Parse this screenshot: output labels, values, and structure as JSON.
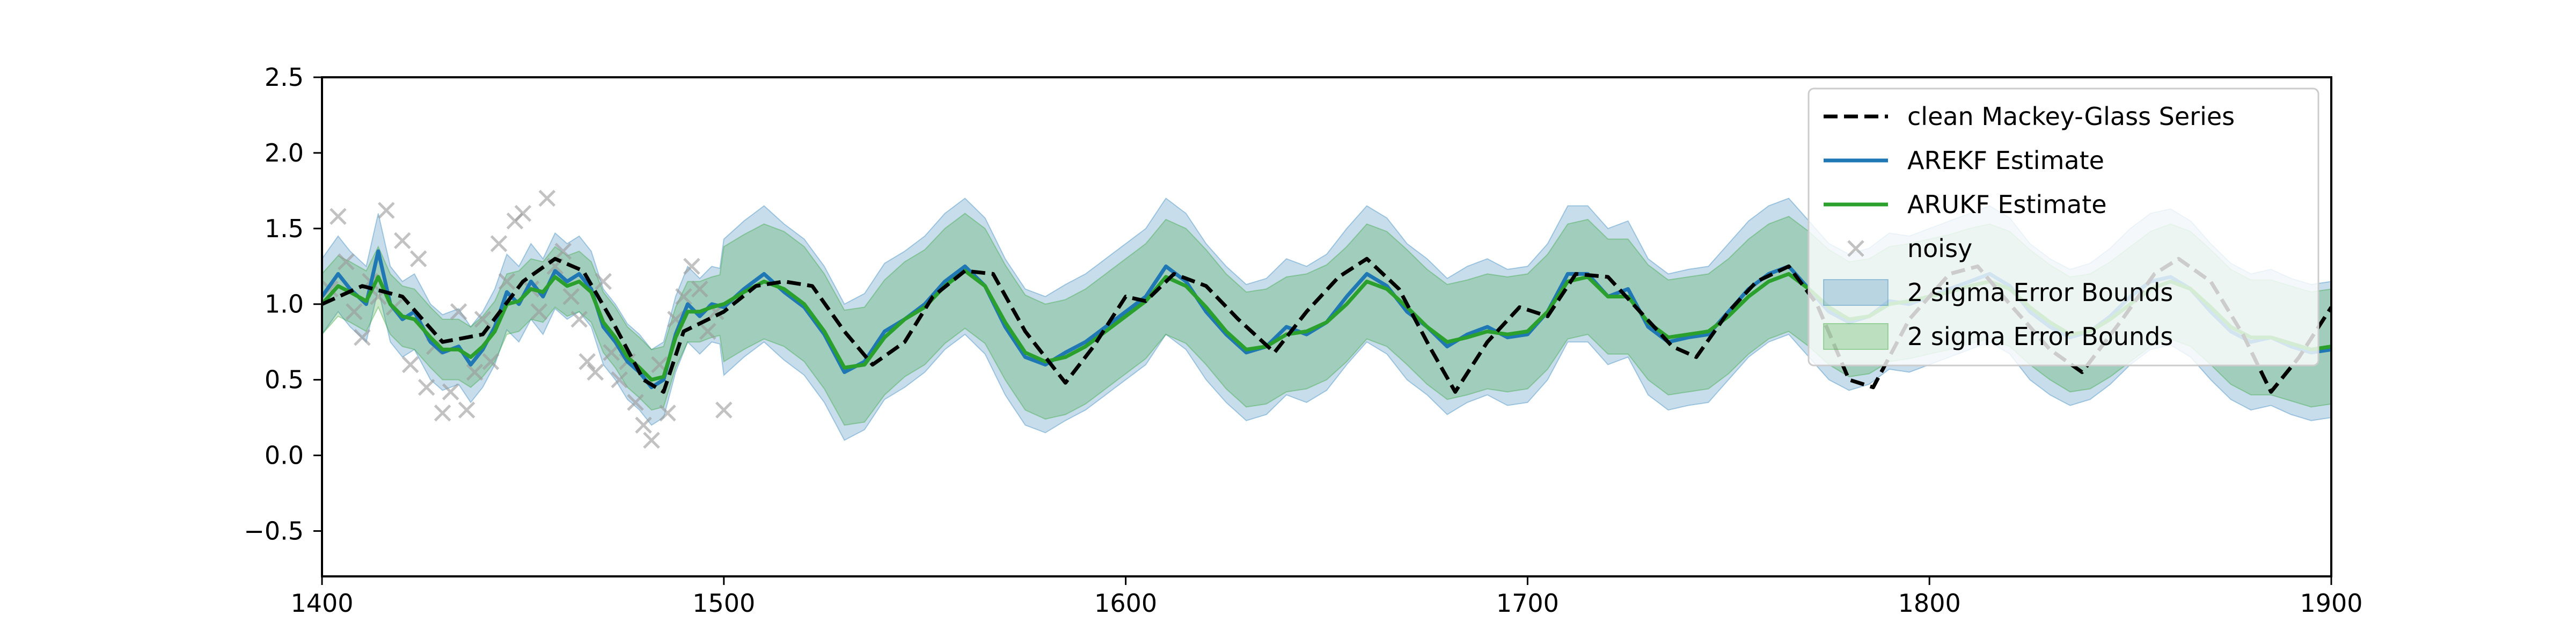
{
  "chart_data": {
    "type": "line",
    "title": "",
    "xlabel": "",
    "ylabel": "",
    "xlim": [
      1400,
      1900
    ],
    "ylim": [
      -0.8,
      2.5
    ],
    "xticks": [
      "1400",
      "1500",
      "1600",
      "1700",
      "1800",
      "1900"
    ],
    "yticks": [
      "−0.5",
      "0.0",
      "0.5",
      "1.0",
      "1.5",
      "2.0",
      "2.5"
    ],
    "ytick_values": [
      -0.5,
      0.0,
      0.5,
      1.0,
      1.5,
      2.0,
      2.5
    ],
    "xtick_values": [
      1400,
      1500,
      1600,
      1700,
      1800,
      1900
    ],
    "grid": false,
    "legend_position": "top-right",
    "legend": [
      "clean Mackey-Glass Series",
      "AREKF Estimate",
      "ARUKF Estimate",
      "noisy",
      "2 sigma Error Bounds",
      "2 sigma Error Bounds"
    ],
    "colors": {
      "clean": "#000000",
      "arekf": "#1f77b4",
      "arukf": "#2ca02c",
      "noisy": "#999999",
      "arekf_band": "#1f77b4",
      "arukf_band": "#2ca02c"
    },
    "series": [
      {
        "name": "clean Mackey-Glass Series",
        "x": [
          1400,
          1410,
          1420,
          1430,
          1440,
          1450,
          1458,
          1465,
          1472,
          1480,
          1485,
          1490,
          1500,
          1508,
          1515,
          1522,
          1530,
          1537,
          1545,
          1552,
          1560,
          1567,
          1575,
          1585,
          1592,
          1600,
          1605,
          1612,
          1620,
          1628,
          1637,
          1645,
          1653,
          1660,
          1668,
          1676,
          1682,
          1690,
          1698,
          1705,
          1712,
          1720,
          1728,
          1736,
          1742,
          1750,
          1757,
          1765,
          1772,
          1780,
          1786,
          1795,
          1805,
          1812,
          1820,
          1830,
          1838,
          1848,
          1856,
          1862,
          1870,
          1878,
          1885,
          1892,
          1900
        ],
        "y": [
          1.0,
          1.12,
          1.05,
          0.75,
          0.8,
          1.15,
          1.3,
          1.22,
          0.9,
          0.5,
          0.42,
          0.82,
          0.95,
          1.12,
          1.15,
          1.12,
          0.82,
          0.6,
          0.75,
          1.05,
          1.22,
          1.2,
          0.82,
          0.48,
          0.72,
          1.05,
          1.02,
          1.2,
          1.12,
          0.9,
          0.68,
          0.95,
          1.18,
          1.3,
          1.1,
          0.7,
          0.42,
          0.75,
          0.98,
          0.92,
          1.2,
          1.18,
          0.95,
          0.72,
          0.65,
          0.95,
          1.15,
          1.25,
          1.0,
          0.5,
          0.45,
          0.9,
          1.2,
          1.25,
          1.0,
          0.7,
          0.55,
          0.9,
          1.2,
          1.3,
          1.15,
          0.8,
          0.42,
          0.65,
          0.98
        ]
      },
      {
        "name": "AREKF Estimate",
        "x": [
          1400,
          1404,
          1407,
          1411,
          1414,
          1417,
          1420,
          1423,
          1427,
          1430,
          1434,
          1437,
          1440,
          1443,
          1446,
          1449,
          1452,
          1455,
          1458,
          1461,
          1464,
          1467,
          1470,
          1473,
          1476,
          1479,
          1482,
          1485,
          1488,
          1491,
          1494,
          1497,
          1500,
          1505,
          1510,
          1515,
          1520,
          1525,
          1530,
          1535,
          1540,
          1545,
          1550,
          1555,
          1560,
          1565,
          1570,
          1575,
          1580,
          1585,
          1590,
          1595,
          1600,
          1605,
          1610,
          1615,
          1620,
          1625,
          1630,
          1635,
          1640,
          1645,
          1650,
          1655,
          1660,
          1665,
          1670,
          1675,
          1680,
          1685,
          1690,
          1695,
          1700,
          1705,
          1710,
          1715,
          1720,
          1725,
          1730,
          1735,
          1740,
          1745,
          1750,
          1755,
          1760,
          1765,
          1770,
          1775,
          1780,
          1785,
          1790,
          1795,
          1800,
          1805,
          1810,
          1815,
          1820,
          1825,
          1830,
          1835,
          1840,
          1845,
          1850,
          1855,
          1860,
          1865,
          1870,
          1875,
          1880,
          1885,
          1890,
          1895,
          1900
        ],
        "y": [
          1.05,
          1.2,
          1.1,
          1.0,
          1.35,
          1.0,
          0.9,
          0.95,
          0.75,
          0.68,
          0.72,
          0.6,
          0.7,
          0.85,
          1.08,
          1.0,
          1.15,
          1.05,
          1.22,
          1.15,
          1.2,
          1.1,
          0.85,
          0.75,
          0.62,
          0.55,
          0.45,
          0.5,
          0.8,
          1.0,
          0.92,
          1.0,
          0.98,
          1.1,
          1.2,
          1.08,
          0.98,
          0.8,
          0.55,
          0.62,
          0.82,
          0.9,
          1.0,
          1.15,
          1.25,
          1.12,
          0.85,
          0.65,
          0.6,
          0.68,
          0.75,
          0.85,
          0.95,
          1.05,
          1.25,
          1.15,
          0.95,
          0.8,
          0.68,
          0.72,
          0.85,
          0.8,
          0.88,
          1.05,
          1.2,
          1.12,
          0.95,
          0.85,
          0.72,
          0.8,
          0.85,
          0.78,
          0.8,
          0.95,
          1.2,
          1.2,
          1.05,
          1.1,
          0.85,
          0.75,
          0.78,
          0.8,
          0.95,
          1.1,
          1.2,
          1.25,
          1.1,
          0.95,
          0.88,
          0.92,
          1.02,
          1.0,
          1.05,
          1.1,
          1.15,
          1.2,
          1.12,
          0.95,
          0.85,
          0.78,
          0.82,
          0.92,
          1.05,
          1.15,
          1.18,
          1.1,
          0.95,
          0.82,
          0.75,
          0.78,
          0.72,
          0.68,
          0.7
        ]
      },
      {
        "name": "ARUKF Estimate",
        "x": [
          1400,
          1404,
          1407,
          1411,
          1414,
          1417,
          1420,
          1423,
          1427,
          1430,
          1434,
          1437,
          1440,
          1443,
          1446,
          1449,
          1452,
          1455,
          1458,
          1461,
          1464,
          1467,
          1470,
          1473,
          1476,
          1479,
          1482,
          1485,
          1488,
          1491,
          1494,
          1497,
          1500,
          1505,
          1510,
          1515,
          1520,
          1525,
          1530,
          1535,
          1540,
          1545,
          1550,
          1555,
          1560,
          1565,
          1570,
          1575,
          1580,
          1585,
          1590,
          1595,
          1600,
          1605,
          1610,
          1615,
          1620,
          1625,
          1630,
          1635,
          1640,
          1645,
          1650,
          1655,
          1660,
          1665,
          1670,
          1675,
          1680,
          1685,
          1690,
          1695,
          1700,
          1705,
          1710,
          1715,
          1720,
          1725,
          1730,
          1735,
          1740,
          1745,
          1750,
          1755,
          1760,
          1765,
          1770,
          1775,
          1780,
          1785,
          1790,
          1795,
          1800,
          1805,
          1810,
          1815,
          1820,
          1825,
          1830,
          1835,
          1840,
          1845,
          1850,
          1855,
          1860,
          1865,
          1870,
          1875,
          1880,
          1885,
          1890,
          1895,
          1900
        ],
        "y": [
          1.0,
          1.12,
          1.08,
          1.02,
          1.18,
          1.0,
          0.92,
          0.9,
          0.78,
          0.7,
          0.7,
          0.65,
          0.72,
          0.82,
          1.0,
          1.02,
          1.1,
          1.08,
          1.18,
          1.12,
          1.15,
          1.08,
          0.88,
          0.78,
          0.65,
          0.58,
          0.5,
          0.52,
          0.78,
          0.95,
          0.95,
          0.98,
          1.0,
          1.08,
          1.15,
          1.1,
          1.0,
          0.82,
          0.58,
          0.6,
          0.78,
          0.9,
          0.98,
          1.12,
          1.22,
          1.12,
          0.88,
          0.68,
          0.62,
          0.65,
          0.72,
          0.82,
          0.92,
          1.02,
          1.18,
          1.12,
          0.98,
          0.82,
          0.7,
          0.72,
          0.8,
          0.82,
          0.88,
          1.0,
          1.15,
          1.1,
          0.98,
          0.85,
          0.75,
          0.78,
          0.82,
          0.8,
          0.82,
          0.95,
          1.15,
          1.18,
          1.05,
          1.05,
          0.88,
          0.78,
          0.8,
          0.82,
          0.92,
          1.05,
          1.15,
          1.2,
          1.1,
          0.98,
          0.9,
          0.92,
          1.0,
          1.02,
          1.05,
          1.08,
          1.12,
          1.15,
          1.1,
          0.98,
          0.88,
          0.8,
          0.82,
          0.9,
          1.0,
          1.1,
          1.15,
          1.1,
          0.98,
          0.85,
          0.78,
          0.78,
          0.74,
          0.7,
          0.72
        ]
      },
      {
        "name": "noisy",
        "x": [
          1402,
          1404,
          1406,
          1408,
          1410,
          1412,
          1414,
          1416,
          1418,
          1420,
          1422,
          1424,
          1426,
          1428,
          1430,
          1432,
          1434,
          1436,
          1438,
          1440,
          1442,
          1444,
          1446,
          1448,
          1450,
          1452,
          1454,
          1456,
          1458,
          1460,
          1462,
          1464,
          1466,
          1468,
          1470,
          1472,
          1474,
          1476,
          1478,
          1480,
          1482,
          1484,
          1486,
          1488,
          1490,
          1492,
          1494,
          1496,
          1498,
          1500
        ],
        "y": [
          1.1,
          1.58,
          1.28,
          0.95,
          0.78,
          1.15,
          1.05,
          1.62,
          0.98,
          1.42,
          0.6,
          1.3,
          0.45,
          0.72,
          0.28,
          0.42,
          0.95,
          0.3,
          0.55,
          0.9,
          0.62,
          1.4,
          1.15,
          1.55,
          1.6,
          1.1,
          0.95,
          1.7,
          1.25,
          1.35,
          1.05,
          0.9,
          0.62,
          0.55,
          1.15,
          0.68,
          0.5,
          0.62,
          0.35,
          0.2,
          0.1,
          0.6,
          0.28,
          0.9,
          1.05,
          1.25,
          1.1,
          0.82,
          0.95,
          0.3
        ]
      },
      {
        "name": "2 sigma Error Bounds",
        "band_for": "AREKF Estimate",
        "half_width_before_1500": 0.25,
        "half_width_after_1500": 0.45
      },
      {
        "name": "2 sigma Error Bounds",
        "band_for": "ARUKF Estimate",
        "half_width_before_1500": 0.2,
        "half_width_after_1500": 0.38
      }
    ]
  }
}
